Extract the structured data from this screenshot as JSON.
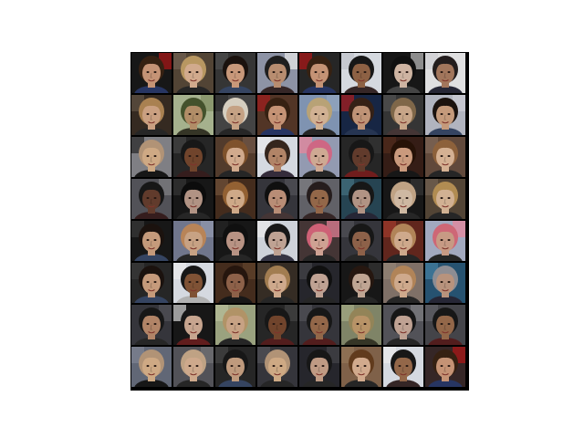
{
  "figure": {
    "background": "#ffffff",
    "grid_rows": 8,
    "grid_cols": 8,
    "separator_color": "#000000"
  },
  "tiles": [
    {
      "bg": "#1a1a1a",
      "skin": "#d6a07f",
      "hair": "#3b2414",
      "shirt": "#2b3a6b",
      "accent": "#c01818"
    },
    {
      "bg": "#5a4a3a",
      "skin": "#e3b99a",
      "hair": "#c8a46a",
      "shirt": "#2a2a2a",
      "accent": "#7a6a5a"
    },
    {
      "bg": "#3a3a3a",
      "skin": "#d9a585",
      "hair": "#1e1410",
      "shirt": "#3a4a6a",
      "accent": "#555555"
    },
    {
      "bg": "#9aa0b4",
      "skin": "#c89a7a",
      "hair": "#222222",
      "shirt": "#3a2a2a",
      "accent": "#ffffff"
    },
    {
      "bg": "#2a2a2a",
      "skin": "#d6a07f",
      "hair": "#3b2414",
      "shirt": "#2b3a6b",
      "accent": "#c01818"
    },
    {
      "bg": "#e8ecf2",
      "skin": "#9a6a4a",
      "hair": "#1a1a1a",
      "shirt": "#3a2a2a",
      "accent": "#d0d4dc"
    },
    {
      "bg": "#1a1a1a",
      "skin": "#e0c4b0",
      "hair": "#121212",
      "shirt": "#4a4a4a",
      "accent": "#d0d0d0"
    },
    {
      "bg": "#f2f2f4",
      "skin": "#b08064",
      "hair": "#262020",
      "shirt": "#2a2a3a",
      "accent": "#e0e0e4"
    },
    {
      "bg": "#3a2e24",
      "skin": "#dcae8c",
      "hair": "#b88c58",
      "shirt": "#2a2a2a",
      "accent": "#6a5a4a"
    },
    {
      "bg": "#b4c09a",
      "skin": "#c09a70",
      "hair": "#4a5a30",
      "shirt": "#3a3a2a",
      "accent": "#8a9a6a"
    },
    {
      "bg": "#4a4a4a",
      "skin": "#d6b090",
      "hair": "#e8e0d0",
      "shirt": "#2a2a2a",
      "accent": "#303030"
    },
    {
      "bg": "#5a3a2a",
      "skin": "#d6a07f",
      "hair": "#3b2414",
      "shirt": "#2b3a6b",
      "accent": "#b02020"
    },
    {
      "bg": "#8aa0c0",
      "skin": "#e3c0a0",
      "hair": "#c8b080",
      "shirt": "#2a2a2a",
      "accent": "#a0b4d0"
    },
    {
      "bg": "#1a2a4a",
      "skin": "#d0a080",
      "hair": "#3a2418",
      "shirt": "#2a3a5a",
      "accent": "#c02020"
    },
    {
      "bg": "#3a3a3a",
      "skin": "#d8b494",
      "hair": "#8a7050",
      "shirt": "#4a3a3a",
      "accent": "#5a5a5a"
    },
    {
      "bg": "#c0c4d0",
      "skin": "#d6a886",
      "hair": "#1e1410",
      "shirt": "#3a4a6a",
      "accent": "#e0e0e8"
    },
    {
      "bg": "#8a8a90",
      "skin": "#e0b890",
      "hair": "#c0a080",
      "shirt": "#1a1a1a",
      "accent": "#2a2a2a"
    },
    {
      "bg": "#2a2a2a",
      "skin": "#7a4a30",
      "hair": "#1a1a1a",
      "shirt": "#3a2020",
      "accent": "#4a4a4a"
    },
    {
      "bg": "#5a4030",
      "skin": "#e3b999",
      "hair": "#8a5a30",
      "shirt": "#2a2a2a",
      "accent": "#7a6050"
    },
    {
      "bg": "#e8ecf4",
      "skin": "#c09070",
      "hair": "#3a2a20",
      "shirt": "#3a3040",
      "accent": "#ffffff"
    },
    {
      "bg": "#a0a8c0",
      "skin": "#e0b8a0",
      "hair": "#e07090",
      "shirt": "#2a2a2a",
      "accent": "#ff90a8"
    },
    {
      "bg": "#2a2a2a",
      "skin": "#6a4030",
      "hair": "#1a1a1a",
      "shirt": "#7a2020",
      "accent": "#3a3a3a"
    },
    {
      "bg": "#3a2018",
      "skin": "#dca888",
      "hair": "#2a1408",
      "shirt": "#1a1a1a",
      "accent": "#5a3020"
    },
    {
      "bg": "#6a5040",
      "skin": "#e8c0a0",
      "hair": "#9a6a40",
      "shirt": "#2a2a2a",
      "accent": "#8a7060"
    },
    {
      "bg": "#5a5a60",
      "skin": "#6a4030",
      "hair": "#1a1a1a",
      "shirt": "#3a2020",
      "accent": "#8a8a90"
    },
    {
      "bg": "#1a1a1a",
      "skin": "#c0a090",
      "hair": "#0e0e0e",
      "shirt": "#2a2a2a",
      "accent": "#3a3a3a"
    },
    {
      "bg": "#4a3020",
      "skin": "#e0b894",
      "hair": "#a06a38",
      "shirt": "#2a2a2a",
      "accent": "#7a5a40"
    },
    {
      "bg": "#3a3a40",
      "skin": "#c89a80",
      "hair": "#121212",
      "shirt": "#4a3a3a",
      "accent": "#5a5a60"
    },
    {
      "bg": "#6a6a70",
      "skin": "#a07050",
      "hair": "#2a2020",
      "shirt": "#3a2a2a",
      "accent": "#8a8a90"
    },
    {
      "bg": "#2a4a5a",
      "skin": "#c0a090",
      "hair": "#1a1a1a",
      "shirt": "#2a2a3a",
      "accent": "#4a7a8a"
    },
    {
      "bg": "#1a1a1a",
      "skin": "#e0c8b0",
      "hair": "#d0b090",
      "shirt": "#2a2a2a",
      "accent": "#3a3a3a"
    },
    {
      "bg": "#5a4a3a",
      "skin": "#e3c0a0",
      "hair": "#c0985a",
      "shirt": "#2a2a2a",
      "accent": "#7a6a5a"
    },
    {
      "bg": "#1a1a1a",
      "skin": "#d6a886",
      "hair": "#1e1410",
      "shirt": "#3a4a6a",
      "accent": "#404040"
    },
    {
      "bg": "#7a8098",
      "skin": "#d8b090",
      "hair": "#c89060",
      "shirt": "#2a2a2a",
      "accent": "#a0a8c0"
    },
    {
      "bg": "#1a1a1a",
      "skin": "#c8a090",
      "hair": "#121212",
      "shirt": "#2a2a2a",
      "accent": "#2a2a2a"
    },
    {
      "bg": "#e0e4ec",
      "skin": "#d0b0a0",
      "hair": "#1a1a1a",
      "shirt": "#3a3a4a",
      "accent": "#ffffff"
    },
    {
      "bg": "#4a3a3a",
      "skin": "#e0b0a0",
      "hair": "#e06a80",
      "shirt": "#2a2a2a",
      "accent": "#ff90a8"
    },
    {
      "bg": "#3a3a40",
      "skin": "#9a6a50",
      "hair": "#1a1a1a",
      "shirt": "#2a2a2a",
      "accent": "#5a5a60"
    },
    {
      "bg": "#6a2a20",
      "skin": "#e0b898",
      "hair": "#c09060",
      "shirt": "#2a2a2a",
      "accent": "#b04030"
    },
    {
      "bg": "#b0b8d0",
      "skin": "#d8a890",
      "hair": "#e07080",
      "shirt": "#2a2a2a",
      "accent": "#ff90a8"
    },
    {
      "bg": "#2a2a2a",
      "skin": "#d6a886",
      "hair": "#1e1410",
      "shirt": "#3a4a6a",
      "accent": "#404040"
    },
    {
      "bg": "#e8ecf4",
      "skin": "#8a5a3a",
      "hair": "#1a1a1a",
      "shirt": "#c0c0c0",
      "accent": "#ffffff"
    },
    {
      "bg": "#4a3020",
      "skin": "#9a6a50",
      "hair": "#2a1810",
      "shirt": "#1a1a1a",
      "accent": "#6a4a30"
    },
    {
      "bg": "#3a3028",
      "skin": "#e0b898",
      "hair": "#b08858",
      "shirt": "#2a2a2a",
      "accent": "#5a4a3a"
    },
    {
      "bg": "#2a2a30",
      "skin": "#d0b0a0",
      "hair": "#121212",
      "shirt": "#2a2a2a",
      "accent": "#4a4a50"
    },
    {
      "bg": "#1a1a1a",
      "skin": "#d0b4a0",
      "hair": "#2a1a12",
      "shirt": "#2a2a2a",
      "accent": "#3a3a3a"
    },
    {
      "bg": "#8a7a70",
      "skin": "#e0b898",
      "hair": "#c09060",
      "shirt": "#2a2a2a",
      "accent": "#a09080"
    },
    {
      "bg": "#2a5a7a",
      "skin": "#c8a088",
      "hair": "#9a9aa0",
      "shirt": "#2a2a3a",
      "accent": "#4a8ab0"
    },
    {
      "bg": "#3a3a40",
      "skin": "#c09070",
      "hair": "#1a1a1a",
      "shirt": "#2a2a2a",
      "accent": "#5a5a60"
    },
    {
      "bg": "#1a1a1a",
      "skin": "#d8b49c",
      "hair": "#1a1a1a",
      "shirt": "#6a2020",
      "accent": "#e8e8e8"
    },
    {
      "bg": "#a8b08a",
      "skin": "#d8b090",
      "hair": "#c0a070",
      "shirt": "#2a2a2a",
      "accent": "#c8d0a8"
    },
    {
      "bg": "#2a2a2a",
      "skin": "#7a4a30",
      "hair": "#1a1a1a",
      "shirt": "#5a2020",
      "accent": "#4a4a4a"
    },
    {
      "bg": "#3a3a40",
      "skin": "#a07050",
      "hair": "#1a1a1a",
      "shirt": "#5a2020",
      "accent": "#5a5a60"
    },
    {
      "bg": "#8a9070",
      "skin": "#c8a070",
      "hair": "#a09060",
      "shirt": "#3a3a2a",
      "accent": "#b0b890"
    },
    {
      "bg": "#5a5a60",
      "skin": "#d0b0a0",
      "hair": "#1a1a1a",
      "shirt": "#2a2a2a",
      "accent": "#8a8a90"
    },
    {
      "bg": "#4a4a50",
      "skin": "#a07050",
      "hair": "#1a1a1a",
      "shirt": "#5a2020",
      "accent": "#6a6a70"
    },
    {
      "bg": "#6a7080",
      "skin": "#e0b890",
      "hair": "#c0a080",
      "shirt": "#1a1a1a",
      "accent": "#8a90a0"
    },
    {
      "bg": "#5a5a60",
      "skin": "#e0b898",
      "hair": "#d0b090",
      "shirt": "#2a2a2a",
      "accent": "#7a7a80"
    },
    {
      "bg": "#2a2a2a",
      "skin": "#d0a888",
      "hair": "#1a1a1a",
      "shirt": "#3a4a6a",
      "accent": "#4a4a4a"
    },
    {
      "bg": "#3a3a40",
      "skin": "#e0b890",
      "hair": "#c0a080",
      "shirt": "#2a2a2a",
      "accent": "#5a5a60"
    },
    {
      "bg": "#2a2a30",
      "skin": "#d0a890",
      "hair": "#1a1a1a",
      "shirt": "#2a2a2a",
      "accent": "#4a4a50"
    },
    {
      "bg": "#8a6a50",
      "skin": "#e3b999",
      "hair": "#6a4020",
      "shirt": "#2a2a2a",
      "accent": "#a08060"
    },
    {
      "bg": "#e8ecf4",
      "skin": "#a07050",
      "hair": "#1a1a1a",
      "shirt": "#3a2a2a",
      "accent": "#ffffff"
    },
    {
      "bg": "#3a2a2a",
      "skin": "#d6a07f",
      "hair": "#3b2414",
      "shirt": "#2b3a6b",
      "accent": "#c01818"
    }
  ]
}
